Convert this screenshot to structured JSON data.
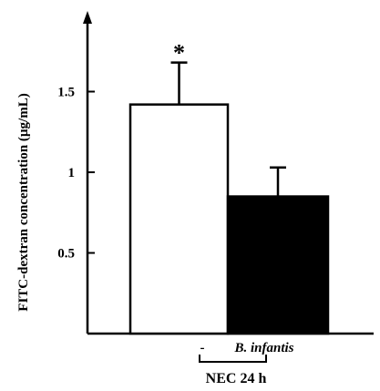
{
  "chart_data": {
    "type": "bar",
    "ylabel": "FITC-dextran concentration (µg/mL)",
    "xlabel": "NEC 24 h",
    "ylim": [
      0,
      2.0
    ],
    "yticks": [
      {
        "value": 0.5,
        "label": "0.5"
      },
      {
        "value": 1.0,
        "label": "1"
      },
      {
        "value": 1.5,
        "label": "1.5"
      }
    ],
    "categories": [
      "-",
      "B. infantis"
    ],
    "values": [
      1.42,
      0.85
    ],
    "errors": [
      0.26,
      0.18
    ],
    "bar_colors": [
      "#ffffff",
      "#000000"
    ],
    "significance": [
      "*",
      ""
    ]
  }
}
